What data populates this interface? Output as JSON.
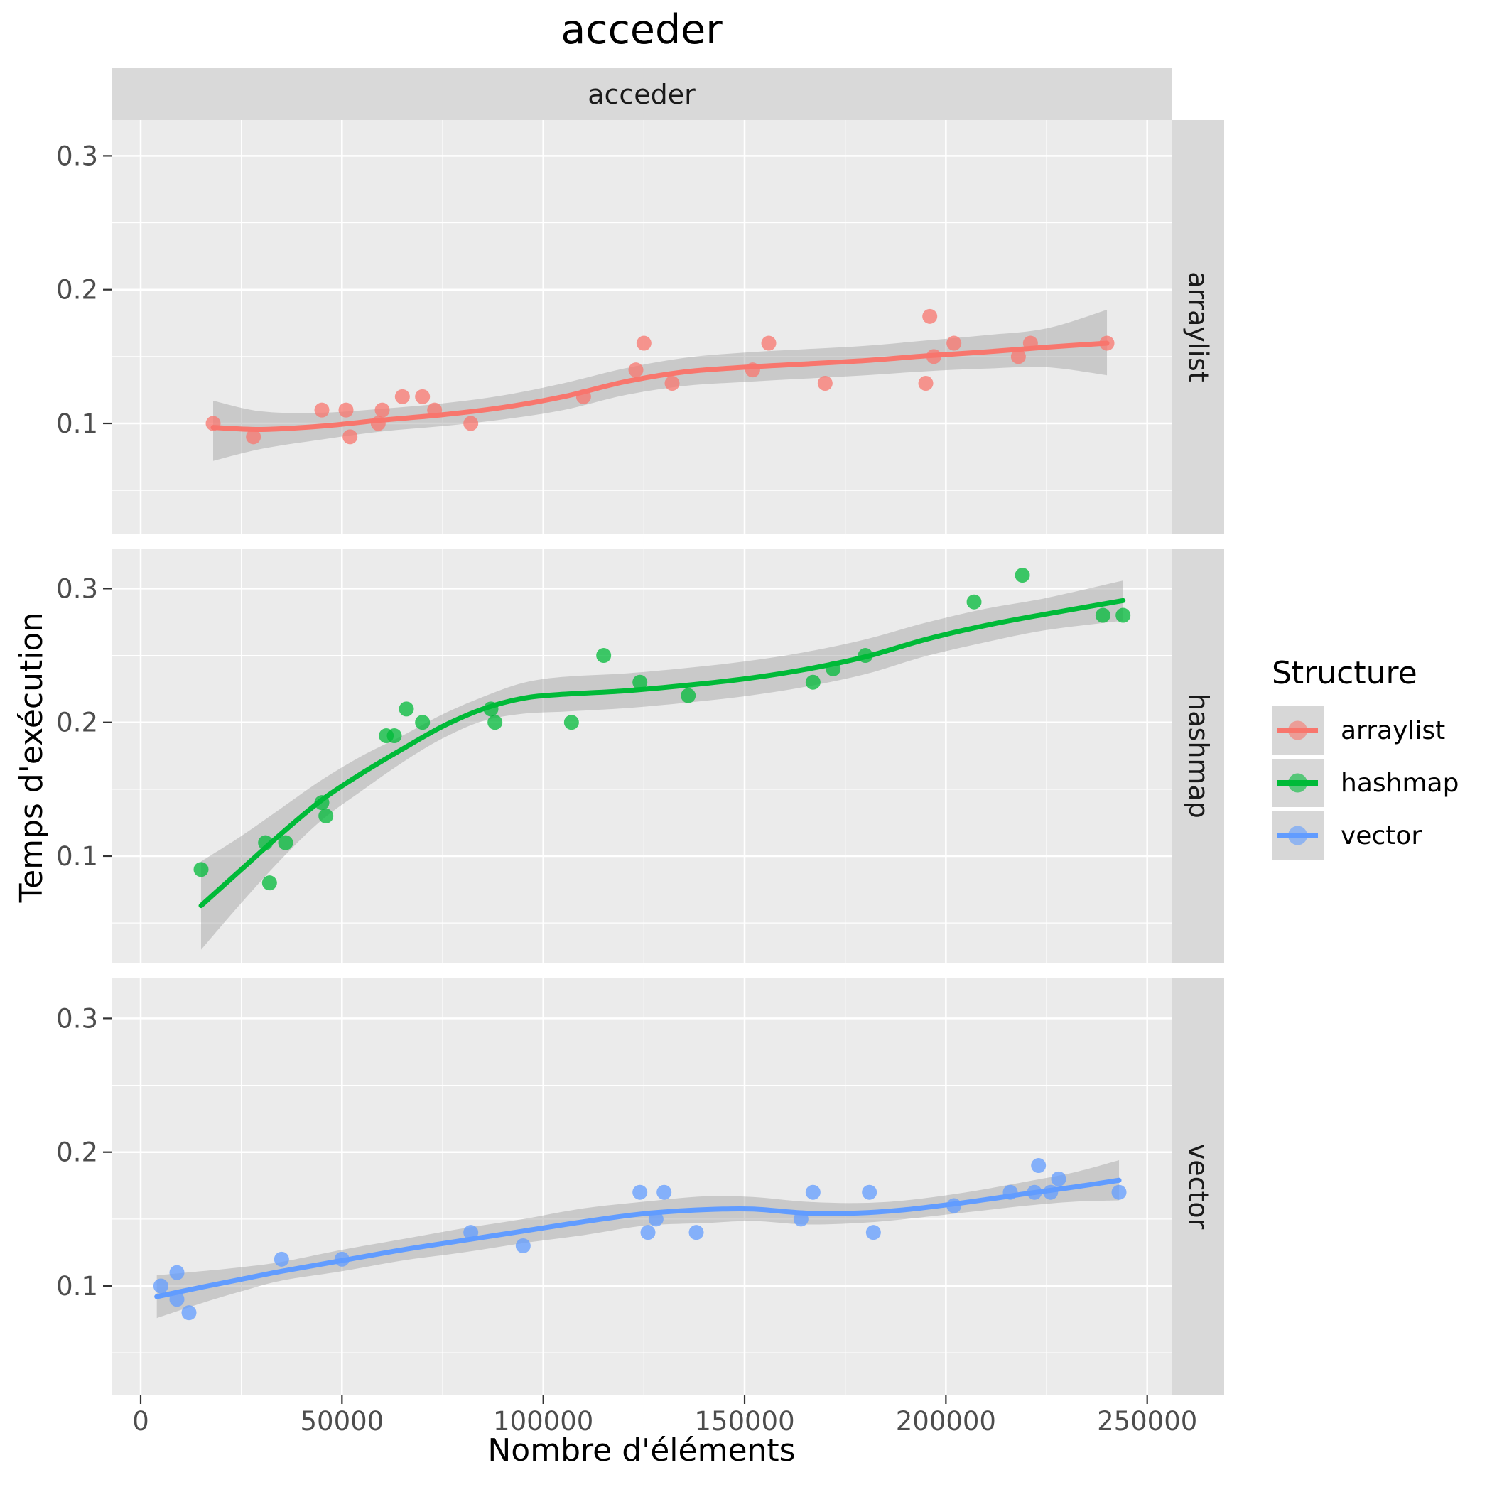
{
  "title": "acceder",
  "facet_top": "acceder",
  "facets_right": [
    "arraylist",
    "hashmap",
    "vector"
  ],
  "xlabel": "Nombre d'éléments",
  "ylabel": "Temps d'exécution",
  "legend": {
    "title": "Structure",
    "items": [
      {
        "label": "arraylist",
        "color": "#F8766D"
      },
      {
        "label": "hashmap",
        "color": "#00BA38"
      },
      {
        "label": "vector",
        "color": "#619CFF"
      }
    ]
  },
  "chart_data": {
    "type": "scatter",
    "subtype": "scatter + loess smooth with confidence band, facetted by structure",
    "title": "acceder",
    "xlabel": "Nombre d'éléments",
    "ylabel": "Temps d'exécution",
    "x_ticks": [
      0,
      50000,
      100000,
      150000,
      200000,
      250000
    ],
    "x_tick_labels": [
      "0",
      "50000",
      "100000",
      "150000",
      "200000",
      "250000"
    ],
    "x_minor_ticks": [
      25000,
      75000,
      125000,
      175000,
      225000
    ],
    "y_ticks": [
      0.1,
      0.2,
      0.3
    ],
    "y_tick_labels": [
      "0.1",
      "0.2",
      "0.3"
    ],
    "y_minor_ticks": [
      0.05,
      0.15,
      0.25
    ],
    "xlim": [
      -7200,
      256500
    ],
    "ylim": [
      0.018,
      0.329
    ],
    "grid": true,
    "legend_position": "right",
    "panel_bg": "#EBEBEB",
    "strip_bg": "#D9D9D9",
    "grid_color": "#FFFFFF",
    "band_color": "#9B9B9B",
    "tick_color": "#333333",
    "tick_label_color": "#4D4D4D",
    "series": [
      {
        "name": "arraylist",
        "color": "#F8766D",
        "points": [
          [
            18000,
            0.1
          ],
          [
            28000,
            0.09
          ],
          [
            45000,
            0.11
          ],
          [
            51000,
            0.11
          ],
          [
            52000,
            0.09
          ],
          [
            59000,
            0.1
          ],
          [
            60000,
            0.11
          ],
          [
            65000,
            0.12
          ],
          [
            70000,
            0.12
          ],
          [
            73000,
            0.11
          ],
          [
            82000,
            0.1
          ],
          [
            110000,
            0.12
          ],
          [
            123000,
            0.14
          ],
          [
            125000,
            0.16
          ],
          [
            132000,
            0.13
          ],
          [
            152000,
            0.14
          ],
          [
            156000,
            0.16
          ],
          [
            170000,
            0.13
          ],
          [
            195000,
            0.13
          ],
          [
            196000,
            0.18
          ],
          [
            197000,
            0.15
          ],
          [
            202000,
            0.16
          ],
          [
            218000,
            0.15
          ],
          [
            221000,
            0.16
          ],
          [
            240000,
            0.16
          ]
        ],
        "curve": [
          [
            18000,
            0.097
          ],
          [
            30000,
            0.0955
          ],
          [
            45000,
            0.098
          ],
          [
            60000,
            0.1025
          ],
          [
            75000,
            0.1065
          ],
          [
            90000,
            0.112
          ],
          [
            105000,
            0.12
          ],
          [
            120000,
            0.131
          ],
          [
            135000,
            0.1385
          ],
          [
            150000,
            0.142
          ],
          [
            165000,
            0.1445
          ],
          [
            180000,
            0.147
          ],
          [
            195000,
            0.1505
          ],
          [
            210000,
            0.1535
          ],
          [
            225000,
            0.157
          ],
          [
            240000,
            0.16
          ]
        ],
        "band_upper": [
          [
            18000,
            0.117
          ],
          [
            30000,
            0.109
          ],
          [
            45000,
            0.108
          ],
          [
            60000,
            0.111
          ],
          [
            75000,
            0.115
          ],
          [
            90000,
            0.121
          ],
          [
            105000,
            0.13
          ],
          [
            120000,
            0.141
          ],
          [
            135000,
            0.149
          ],
          [
            150000,
            0.153
          ],
          [
            165000,
            0.1555
          ],
          [
            180000,
            0.158
          ],
          [
            195000,
            0.162
          ],
          [
            210000,
            0.166
          ],
          [
            225000,
            0.171
          ],
          [
            240000,
            0.185
          ]
        ],
        "band_lower": [
          [
            18000,
            0.072
          ],
          [
            30000,
            0.081
          ],
          [
            45000,
            0.088
          ],
          [
            60000,
            0.094
          ],
          [
            75000,
            0.098
          ],
          [
            90000,
            0.103
          ],
          [
            105000,
            0.11
          ],
          [
            120000,
            0.121
          ],
          [
            135000,
            0.128
          ],
          [
            150000,
            0.131
          ],
          [
            165000,
            0.1335
          ],
          [
            180000,
            0.136
          ],
          [
            195000,
            0.139
          ],
          [
            210000,
            0.141
          ],
          [
            225000,
            0.142
          ],
          [
            240000,
            0.136
          ]
        ]
      },
      {
        "name": "hashmap",
        "color": "#00BA38",
        "points": [
          [
            15000,
            0.09
          ],
          [
            31000,
            0.11
          ],
          [
            32000,
            0.08
          ],
          [
            36000,
            0.11
          ],
          [
            45000,
            0.14
          ],
          [
            46000,
            0.13
          ],
          [
            61000,
            0.19
          ],
          [
            63000,
            0.19
          ],
          [
            66000,
            0.21
          ],
          [
            70000,
            0.2
          ],
          [
            87000,
            0.21
          ],
          [
            88000,
            0.2
          ],
          [
            107000,
            0.2
          ],
          [
            115000,
            0.25
          ],
          [
            124000,
            0.23
          ],
          [
            136000,
            0.22
          ],
          [
            167000,
            0.23
          ],
          [
            172000,
            0.24
          ],
          [
            180000,
            0.25
          ],
          [
            207000,
            0.29
          ],
          [
            219000,
            0.31
          ],
          [
            239000,
            0.28
          ],
          [
            244000,
            0.28
          ]
        ],
        "curve": [
          [
            15000,
            0.063
          ],
          [
            25000,
            0.09
          ],
          [
            35000,
            0.117
          ],
          [
            45000,
            0.142
          ],
          [
            55000,
            0.162
          ],
          [
            65000,
            0.18
          ],
          [
            75000,
            0.197
          ],
          [
            85000,
            0.21
          ],
          [
            95000,
            0.218
          ],
          [
            105000,
            0.221
          ],
          [
            120000,
            0.2235
          ],
          [
            135000,
            0.2275
          ],
          [
            150000,
            0.2325
          ],
          [
            165000,
            0.2395
          ],
          [
            180000,
            0.249
          ],
          [
            195000,
            0.262
          ],
          [
            210000,
            0.2725
          ],
          [
            225000,
            0.281
          ],
          [
            244000,
            0.291
          ]
        ],
        "band_upper": [
          [
            15000,
            0.096
          ],
          [
            25000,
            0.115
          ],
          [
            35000,
            0.136
          ],
          [
            45000,
            0.157
          ],
          [
            55000,
            0.175
          ],
          [
            65000,
            0.19
          ],
          [
            75000,
            0.206
          ],
          [
            85000,
            0.219
          ],
          [
            95000,
            0.2295
          ],
          [
            105000,
            0.234
          ],
          [
            120000,
            0.2365
          ],
          [
            135000,
            0.2405
          ],
          [
            150000,
            0.2455
          ],
          [
            165000,
            0.2525
          ],
          [
            180000,
            0.262
          ],
          [
            195000,
            0.2745
          ],
          [
            210000,
            0.285
          ],
          [
            225000,
            0.293
          ],
          [
            244000,
            0.306
          ]
        ],
        "band_lower": [
          [
            15000,
            0.03
          ],
          [
            25000,
            0.065
          ],
          [
            35000,
            0.098
          ],
          [
            45000,
            0.127
          ],
          [
            55000,
            0.149
          ],
          [
            65000,
            0.17
          ],
          [
            75000,
            0.188
          ],
          [
            85000,
            0.201
          ],
          [
            95000,
            0.2065
          ],
          [
            105000,
            0.208
          ],
          [
            120000,
            0.2105
          ],
          [
            135000,
            0.2145
          ],
          [
            150000,
            0.2195
          ],
          [
            165000,
            0.2265
          ],
          [
            180000,
            0.236
          ],
          [
            195000,
            0.2495
          ],
          [
            210000,
            0.26
          ],
          [
            225000,
            0.269
          ],
          [
            244000,
            0.276
          ]
        ]
      },
      {
        "name": "vector",
        "color": "#619CFF",
        "points": [
          [
            5000,
            0.1
          ],
          [
            9000,
            0.11
          ],
          [
            9000,
            0.09
          ],
          [
            12000,
            0.08
          ],
          [
            35000,
            0.12
          ],
          [
            50000,
            0.12
          ],
          [
            82000,
            0.14
          ],
          [
            95000,
            0.13
          ],
          [
            124000,
            0.17
          ],
          [
            126000,
            0.14
          ],
          [
            128000,
            0.15
          ],
          [
            130000,
            0.17
          ],
          [
            138000,
            0.14
          ],
          [
            164000,
            0.15
          ],
          [
            167000,
            0.17
          ],
          [
            181000,
            0.17
          ],
          [
            182000,
            0.14
          ],
          [
            202000,
            0.16
          ],
          [
            216000,
            0.17
          ],
          [
            222000,
            0.17
          ],
          [
            223000,
            0.19
          ],
          [
            226000,
            0.17
          ],
          [
            228000,
            0.18
          ],
          [
            243000,
            0.17
          ]
        ],
        "curve": [
          [
            4000,
            0.092
          ],
          [
            15000,
            0.099
          ],
          [
            25000,
            0.105
          ],
          [
            35000,
            0.111
          ],
          [
            50000,
            0.119
          ],
          [
            65000,
            0.127
          ],
          [
            80000,
            0.134
          ],
          [
            95000,
            0.141
          ],
          [
            110000,
            0.148
          ],
          [
            125000,
            0.154
          ],
          [
            140000,
            0.157
          ],
          [
            152000,
            0.1575
          ],
          [
            165000,
            0.1545
          ],
          [
            178000,
            0.1545
          ],
          [
            190000,
            0.157
          ],
          [
            205000,
            0.1625
          ],
          [
            220000,
            0.169
          ],
          [
            232000,
            0.174
          ],
          [
            243000,
            0.179
          ]
        ],
        "band_upper": [
          [
            4000,
            0.108
          ],
          [
            15000,
            0.111
          ],
          [
            25000,
            0.114
          ],
          [
            35000,
            0.118
          ],
          [
            50000,
            0.127
          ],
          [
            65000,
            0.135
          ],
          [
            80000,
            0.143
          ],
          [
            95000,
            0.15
          ],
          [
            110000,
            0.158
          ],
          [
            125000,
            0.163
          ],
          [
            140000,
            0.167
          ],
          [
            152000,
            0.1665
          ],
          [
            165000,
            0.163
          ],
          [
            178000,
            0.162
          ],
          [
            190000,
            0.164
          ],
          [
            205000,
            0.17
          ],
          [
            220000,
            0.178
          ],
          [
            232000,
            0.185
          ],
          [
            243000,
            0.194
          ]
        ],
        "band_lower": [
          [
            4000,
            0.076
          ],
          [
            15000,
            0.087
          ],
          [
            25000,
            0.096
          ],
          [
            35000,
            0.104
          ],
          [
            50000,
            0.111
          ],
          [
            65000,
            0.119
          ],
          [
            80000,
            0.125
          ],
          [
            95000,
            0.132
          ],
          [
            110000,
            0.138
          ],
          [
            125000,
            0.145
          ],
          [
            140000,
            0.147
          ],
          [
            152000,
            0.1485
          ],
          [
            165000,
            0.146
          ],
          [
            178000,
            0.147
          ],
          [
            190000,
            0.15
          ],
          [
            205000,
            0.155
          ],
          [
            220000,
            0.16
          ],
          [
            232000,
            0.163
          ],
          [
            243000,
            0.164
          ]
        ]
      }
    ]
  }
}
